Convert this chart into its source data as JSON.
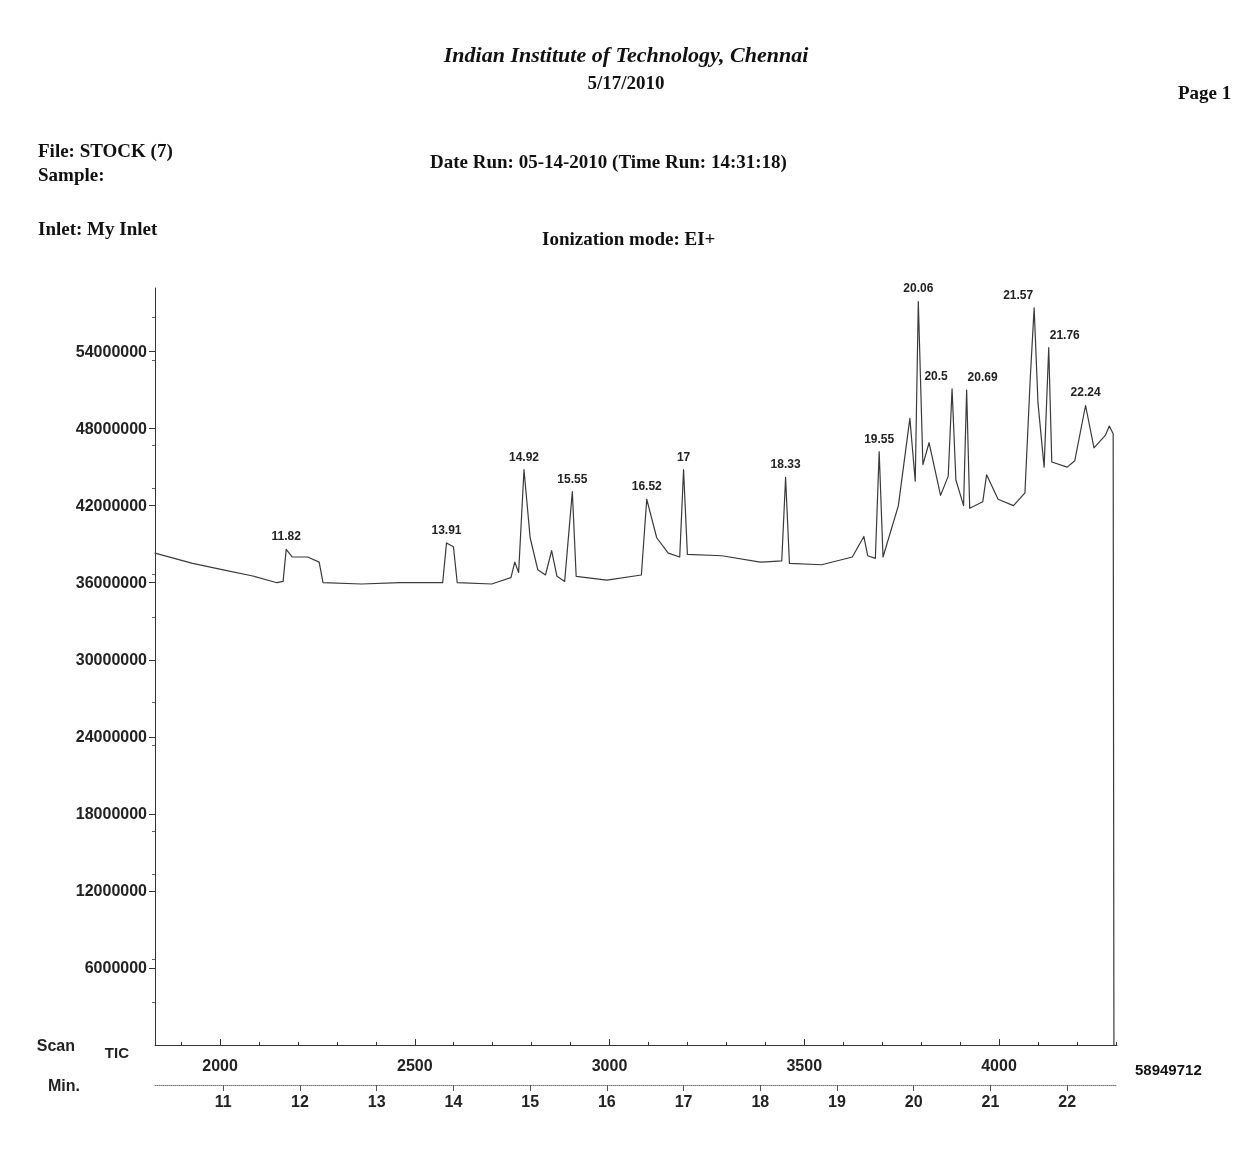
{
  "chart_data": {
    "type": "line",
    "title": "Indian Institute of Technology, Chennai",
    "subtitle": "5/17/2010",
    "xlabel": "Min.",
    "x2label": "Scan",
    "ylabel": "TIC",
    "xlim": [
      10.11,
      22.65
    ],
    "xticks": [
      11,
      12,
      13,
      14,
      15,
      16,
      17,
      18,
      19,
      20,
      21,
      22
    ],
    "x2lim": [
      1833,
      4303
    ],
    "x2ticks": [
      2000,
      2500,
      3000,
      3500,
      4000
    ],
    "ylim": [
      0,
      58949712
    ],
    "yticks": [
      6000000,
      12000000,
      18000000,
      24000000,
      30000000,
      36000000,
      42000000,
      48000000,
      54000000
    ],
    "marker": "none",
    "line_style": "solid",
    "series": [
      {
        "color": "#3a3a3a",
        "x": [
          10.11,
          10.6,
          11.0,
          11.4,
          11.7,
          11.78,
          11.82,
          11.9,
          12.1,
          12.25,
          12.3,
          12.8,
          13.3,
          13.86,
          13.91,
          14.0,
          14.05,
          14.5,
          14.75,
          14.8,
          14.85,
          14.92,
          15.0,
          15.1,
          15.2,
          15.28,
          15.35,
          15.45,
          15.55,
          15.6,
          16.0,
          16.45,
          16.52,
          16.65,
          16.8,
          16.95,
          17.0,
          17.05,
          17.5,
          18.0,
          18.28,
          18.33,
          18.38,
          18.8,
          19.2,
          19.35,
          19.4,
          19.5,
          19.55,
          19.6,
          19.8,
          19.95,
          20.02,
          20.06,
          20.12,
          20.2,
          20.35,
          20.45,
          20.5,
          20.55,
          20.65,
          20.69,
          20.73,
          20.9,
          20.95,
          21.1,
          21.3,
          21.45,
          21.52,
          21.57,
          21.62,
          21.7,
          21.76,
          21.8,
          22.0,
          22.1,
          22.24,
          22.35,
          22.5,
          22.55,
          22.6,
          22.61
        ],
        "values": [
          38300000,
          37500000,
          37000000,
          36500000,
          36000000,
          36100000,
          38600000,
          38000000,
          38000000,
          37600000,
          36000000,
          35900000,
          36000000,
          36000000,
          39100000,
          38800000,
          36000000,
          35900000,
          36400000,
          37600000,
          36800000,
          44800000,
          39500000,
          37000000,
          36600000,
          38500000,
          36500000,
          36100000,
          43100000,
          36500000,
          36200000,
          36600000,
          42500000,
          39500000,
          38300000,
          38000000,
          44800000,
          38200000,
          38100000,
          37600000,
          37700000,
          44200000,
          37500000,
          37400000,
          38000000,
          39600000,
          38100000,
          37900000,
          46200000,
          38000000,
          42000000,
          48800000,
          43900000,
          57900000,
          45200000,
          46900000,
          42800000,
          44300000,
          51100000,
          44000000,
          42000000,
          51000000,
          41800000,
          42300000,
          44400000,
          42500000,
          42000000,
          43000000,
          52000000,
          57400000,
          50000000,
          45000000,
          54300000,
          45400000,
          45000000,
          45500000,
          49800000,
          46500000,
          47500000,
          48200000,
          47600000,
          0
        ]
      }
    ],
    "annotations": [
      {
        "text": "11.82",
        "x": 11.82,
        "y": 38600000
      },
      {
        "text": "13.91",
        "x": 13.91,
        "y": 39100000
      },
      {
        "text": "14.92",
        "x": 14.92,
        "y": 44800000
      },
      {
        "text": "15.55",
        "x": 15.55,
        "y": 43100000
      },
      {
        "text": "16.52",
        "x": 16.52,
        "y": 42500000
      },
      {
        "text": "17",
        "x": 17.0,
        "y": 44800000
      },
      {
        "text": "18.33",
        "x": 18.33,
        "y": 44200000
      },
      {
        "text": "19.55",
        "x": 19.55,
        "y": 46200000
      },
      {
        "text": "20.06",
        "x": 20.06,
        "y": 57900000
      },
      {
        "text": "20.5",
        "x": 20.5,
        "y": 51100000
      },
      {
        "text": "20.69",
        "x": 20.69,
        "y": 51000000
      },
      {
        "text": "21.57",
        "x": 21.57,
        "y": 57400000
      },
      {
        "text": "21.76",
        "x": 21.76,
        "y": 54300000
      },
      {
        "text": "22.24",
        "x": 22.24,
        "y": 49800000
      },
      "Page 1",
      "File: STOCK (7)",
      "Sample:",
      "Inlet: My Inlet",
      "Date Run: 05-14-2010 (Time Run: 14:31:18)",
      "Ionization mode: EI+",
      "58949712"
    ]
  }
}
